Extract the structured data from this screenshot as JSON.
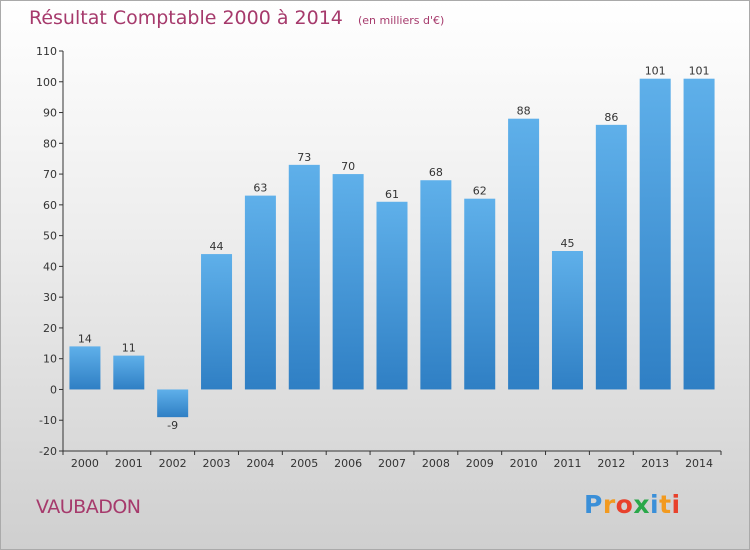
{
  "chart_data": {
    "type": "bar",
    "title": "Résultat Comptable 2000 à 2014",
    "unit_note": "(en milliers d'€)",
    "categories": [
      "2000",
      "2001",
      "2002",
      "2003",
      "2004",
      "2005",
      "2006",
      "2007",
      "2008",
      "2009",
      "2010",
      "2011",
      "2012",
      "2013",
      "2014"
    ],
    "values": [
      14,
      11,
      -9,
      44,
      63,
      73,
      70,
      61,
      68,
      62,
      88,
      45,
      86,
      101,
      101
    ],
    "ylim": [
      -20,
      110
    ],
    "yticks": [
      -20,
      -10,
      0,
      10,
      20,
      30,
      40,
      50,
      60,
      70,
      80,
      90,
      100,
      110
    ],
    "xlabel": "",
    "ylabel": "",
    "grid": false,
    "legend": "none"
  },
  "footer": {
    "commune": "VAUBADON",
    "brand_letters": [
      "P",
      "r",
      "o",
      "x",
      "i",
      "t",
      "i"
    ]
  },
  "colors": {
    "title": "#a63a6c",
    "bar_top": "#5fb0ea",
    "bar_bottom": "#2f7fc4",
    "axis": "#333333",
    "brand_letters": [
      "#3a8fd8",
      "#f29a1f",
      "#e8412c",
      "#2aa84a",
      "#3a8fd8",
      "#f29a1f",
      "#e8412c"
    ]
  }
}
